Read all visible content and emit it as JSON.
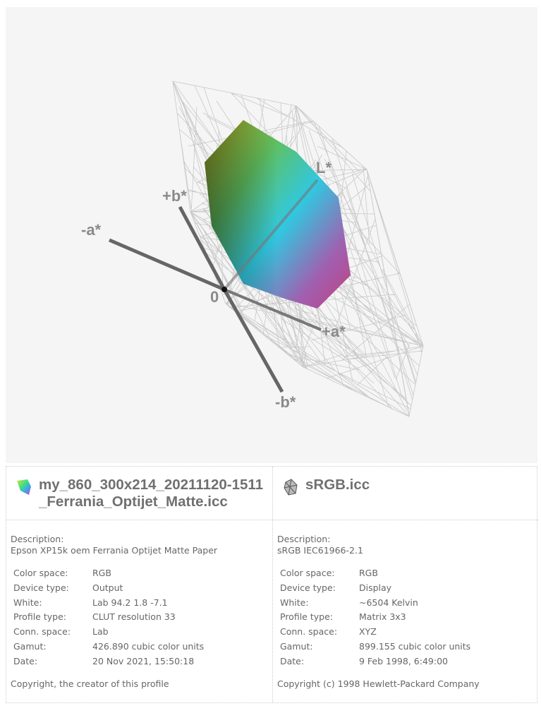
{
  "viewer": {
    "axis_labels": {
      "l": "L*",
      "plus_a": "+a*",
      "minus_a": "-a*",
      "plus_b": "+b*",
      "minus_b": "-b*",
      "origin": "0"
    }
  },
  "profiles": [
    {
      "title": "my_860_300x214_20211120-1511_Ferrania_Optijet_Matte.icc",
      "icon": "gamut-color-icon",
      "description_label": "Description:",
      "description": "Epson XP15k oem Ferrania Optijet Matte Paper",
      "fields": [
        [
          "Color space:",
          "RGB"
        ],
        [
          "Device type:",
          "Output"
        ],
        [
          "White:",
          "Lab 94.2 1.8 -7.1"
        ],
        [
          "Profile type:",
          "CLUT resolution 33"
        ],
        [
          "Conn. space:",
          "Lab"
        ],
        [
          "Gamut:",
          "426.890 cubic color units"
        ],
        [
          "Date:",
          "20 Nov 2021, 15:50:18"
        ]
      ],
      "copyright": "Copyright, the creator of this profile"
    },
    {
      "title": "sRGB.icc",
      "icon": "gamut-wireframe-icon",
      "description_label": "Description:",
      "description": "sRGB IEC61966-2.1",
      "fields": [
        [
          "Color space:",
          "RGB"
        ],
        [
          "Device type:",
          "Display"
        ],
        [
          "White:",
          "~6504 Kelvin"
        ],
        [
          "Profile type:",
          "Matrix 3x3"
        ],
        [
          "Conn. space:",
          "XYZ"
        ],
        [
          "Gamut:",
          "899.155 cubic color units"
        ],
        [
          "Date:",
          "9 Feb 1998, 6:49:00"
        ]
      ],
      "copyright": "Copyright (c) 1998 Hewlett-Packard Company"
    }
  ]
}
